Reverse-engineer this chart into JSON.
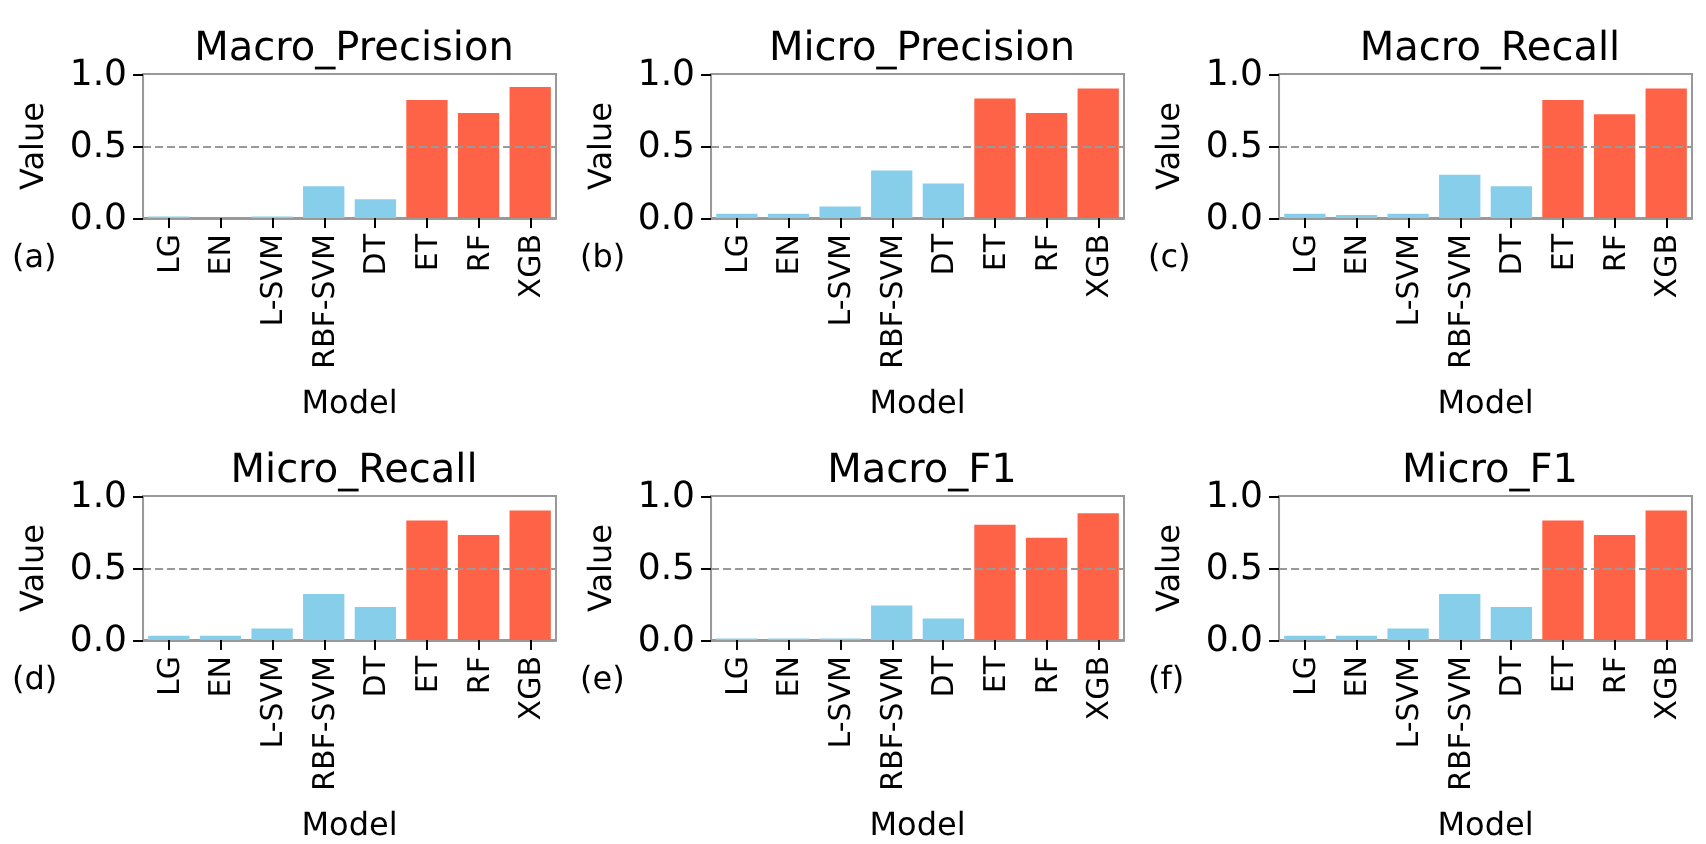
{
  "chart_data": [
    {
      "type": "bar",
      "title": "Macro_Precision",
      "xlabel": "Model",
      "ylabel": "Value",
      "annotations": [
        "(a)"
      ],
      "categories": [
        "LG",
        "EN",
        "L-SVM",
        "RBF-SVM",
        "DT",
        "ET",
        "RF",
        "XGB"
      ],
      "values": [
        0.01,
        0,
        0.01,
        0.22,
        0.13,
        0.82,
        0.73,
        0.91
      ],
      "colors": [
        "#87ceeb",
        "#87ceeb",
        "#87ceeb",
        "#87ceeb",
        "#87ceeb",
        "#ff6347",
        "#ff6347",
        "#ff6347"
      ],
      "ylim": [
        0,
        1
      ],
      "yticks": [
        {
          "value": 0,
          "label": "0.0"
        },
        {
          "value": 0.5,
          "label": "0.5"
        },
        {
          "value": 1,
          "label": "1.0"
        }
      ],
      "ref_lines": [
        {
          "axis": "y",
          "value": 0.5,
          "color": "#999999",
          "line_style": "dashed"
        }
      ]
    },
    {
      "type": "bar",
      "title": "Micro_Precision",
      "xlabel": "Model",
      "ylabel": "Value",
      "annotations": [
        "(b)"
      ],
      "categories": [
        "LG",
        "EN",
        "L-SVM",
        "RBF-SVM",
        "DT",
        "ET",
        "RF",
        "XGB"
      ],
      "values": [
        0.03,
        0.03,
        0.08,
        0.33,
        0.24,
        0.83,
        0.73,
        0.9
      ],
      "colors": [
        "#87ceeb",
        "#87ceeb",
        "#87ceeb",
        "#87ceeb",
        "#87ceeb",
        "#ff6347",
        "#ff6347",
        "#ff6347"
      ],
      "ylim": [
        0,
        1
      ],
      "yticks": [
        {
          "value": 0,
          "label": "0.0"
        },
        {
          "value": 0.5,
          "label": "0.5"
        },
        {
          "value": 1,
          "label": "1.0"
        }
      ],
      "ref_lines": [
        {
          "axis": "y",
          "value": 0.5,
          "color": "#999999",
          "line_style": "dashed"
        }
      ]
    },
    {
      "type": "bar",
      "title": "Macro_Recall",
      "xlabel": "Model",
      "ylabel": "Value",
      "annotations": [
        "(c)"
      ],
      "categories": [
        "LG",
        "EN",
        "L-SVM",
        "RBF-SVM",
        "DT",
        "ET",
        "RF",
        "XGB"
      ],
      "values": [
        0.03,
        0.02,
        0.03,
        0.3,
        0.22,
        0.82,
        0.72,
        0.9
      ],
      "colors": [
        "#87ceeb",
        "#87ceeb",
        "#87ceeb",
        "#87ceeb",
        "#87ceeb",
        "#ff6347",
        "#ff6347",
        "#ff6347"
      ],
      "ylim": [
        0,
        1
      ],
      "yticks": [
        {
          "value": 0,
          "label": "0.0"
        },
        {
          "value": 0.5,
          "label": "0.5"
        },
        {
          "value": 1,
          "label": "1.0"
        }
      ],
      "ref_lines": [
        {
          "axis": "y",
          "value": 0.5,
          "color": "#999999",
          "line_style": "dashed"
        }
      ]
    },
    {
      "type": "bar",
      "title": "Micro_Recall",
      "xlabel": "Model",
      "ylabel": "Value",
      "annotations": [
        "(d)"
      ],
      "categories": [
        "LG",
        "EN",
        "L-SVM",
        "RBF-SVM",
        "DT",
        "ET",
        "RF",
        "XGB"
      ],
      "values": [
        0.03,
        0.03,
        0.08,
        0.32,
        0.23,
        0.83,
        0.73,
        0.9
      ],
      "colors": [
        "#87ceeb",
        "#87ceeb",
        "#87ceeb",
        "#87ceeb",
        "#87ceeb",
        "#ff6347",
        "#ff6347",
        "#ff6347"
      ],
      "ylim": [
        0,
        1
      ],
      "yticks": [
        {
          "value": 0,
          "label": "0.0"
        },
        {
          "value": 0.5,
          "label": "0.5"
        },
        {
          "value": 1,
          "label": "1.0"
        }
      ],
      "ref_lines": [
        {
          "axis": "y",
          "value": 0.5,
          "color": "#999999",
          "line_style": "dashed"
        }
      ]
    },
    {
      "type": "bar",
      "title": "Macro_F1",
      "xlabel": "Model",
      "ylabel": "Value",
      "annotations": [
        "(e)"
      ],
      "categories": [
        "LG",
        "EN",
        "L-SVM",
        "RBF-SVM",
        "DT",
        "ET",
        "RF",
        "XGB"
      ],
      "values": [
        0.01,
        0.01,
        0.01,
        0.24,
        0.15,
        0.8,
        0.71,
        0.88
      ],
      "colors": [
        "#87ceeb",
        "#87ceeb",
        "#87ceeb",
        "#87ceeb",
        "#87ceeb",
        "#ff6347",
        "#ff6347",
        "#ff6347"
      ],
      "ylim": [
        0,
        1
      ],
      "yticks": [
        {
          "value": 0,
          "label": "0.0"
        },
        {
          "value": 0.5,
          "label": "0.5"
        },
        {
          "value": 1,
          "label": "1.0"
        }
      ],
      "ref_lines": [
        {
          "axis": "y",
          "value": 0.5,
          "color": "#999999",
          "line_style": "dashed"
        }
      ]
    },
    {
      "type": "bar",
      "title": "Micro_F1",
      "xlabel": "Model",
      "ylabel": "Value",
      "annotations": [
        "(f)"
      ],
      "categories": [
        "LG",
        "EN",
        "L-SVM",
        "RBF-SVM",
        "DT",
        "ET",
        "RF",
        "XGB"
      ],
      "values": [
        0.03,
        0.03,
        0.08,
        0.32,
        0.23,
        0.83,
        0.73,
        0.9
      ],
      "colors": [
        "#87ceeb",
        "#87ceeb",
        "#87ceeb",
        "#87ceeb",
        "#87ceeb",
        "#ff6347",
        "#ff6347",
        "#ff6347"
      ],
      "ylim": [
        0,
        1
      ],
      "yticks": [
        {
          "value": 0,
          "label": "0.0"
        },
        {
          "value": 0.5,
          "label": "0.5"
        },
        {
          "value": 1,
          "label": "1.0"
        }
      ],
      "ref_lines": [
        {
          "axis": "y",
          "value": 0.5,
          "color": "#999999",
          "line_style": "dashed"
        }
      ]
    }
  ]
}
